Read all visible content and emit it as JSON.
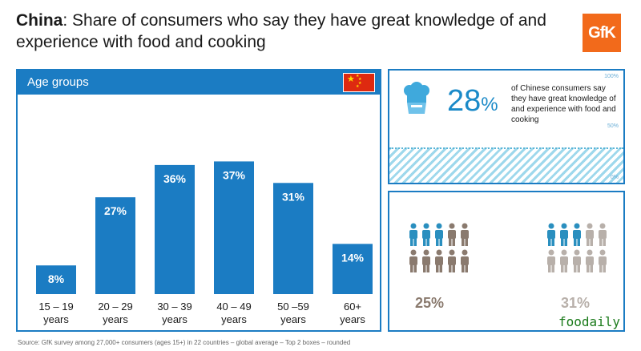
{
  "title": {
    "bold": "China",
    "rest": ": Share of consumers who say they have great knowledge of and experience with food and cooking"
  },
  "logo": {
    "text": "GfK",
    "color": "#f26a1b"
  },
  "panel": {
    "header": "Age groups",
    "accent": "#1b7cc3"
  },
  "chart_data": {
    "type": "bar",
    "categories": [
      "15 – 19 years",
      "20 – 29 years",
      "30 – 39 years",
      "40 – 49 years",
      "50 –59 years",
      "60+ years"
    ],
    "category_lines": [
      [
        "15 – 19",
        "years"
      ],
      [
        "20 – 29",
        "years"
      ],
      [
        "30 – 39",
        "years"
      ],
      [
        "40 – 49",
        "years"
      ],
      [
        "50 –59",
        "years"
      ],
      [
        "60+",
        "years"
      ]
    ],
    "values": [
      8,
      27,
      36,
      37,
      31,
      14
    ],
    "data_labels": [
      "8%",
      "27%",
      "36%",
      "37%",
      "31%",
      "14%"
    ],
    "title": "Age groups",
    "ylim": [
      0,
      40
    ],
    "grid": false,
    "legend": "none",
    "bar_color": "#1b7cc3"
  },
  "summary": {
    "value": "28",
    "unit": "%",
    "description": "of Chinese consumers say they have great knowledge of and experience with food and cooking",
    "fill_level_percent": 28,
    "ticks": [
      "100%",
      "50%",
      "0%"
    ],
    "icon": "chef-hat-icon"
  },
  "comparison": [
    {
      "label": "25%",
      "color": "#8a7a6e",
      "highlight": "#2a8fbf",
      "highlighted": 3,
      "icon": "people-icon"
    },
    {
      "label": "31%",
      "color": "#b8b0aa",
      "highlight": "#2a8fbf",
      "highlighted": 3,
      "icon": "people-icon"
    }
  ],
  "source": "Source: GfK survey among 27,000+ consumers (ages 15+) in 22 countries – global average – Top 2 boxes – rounded",
  "watermark": "foodaily"
}
